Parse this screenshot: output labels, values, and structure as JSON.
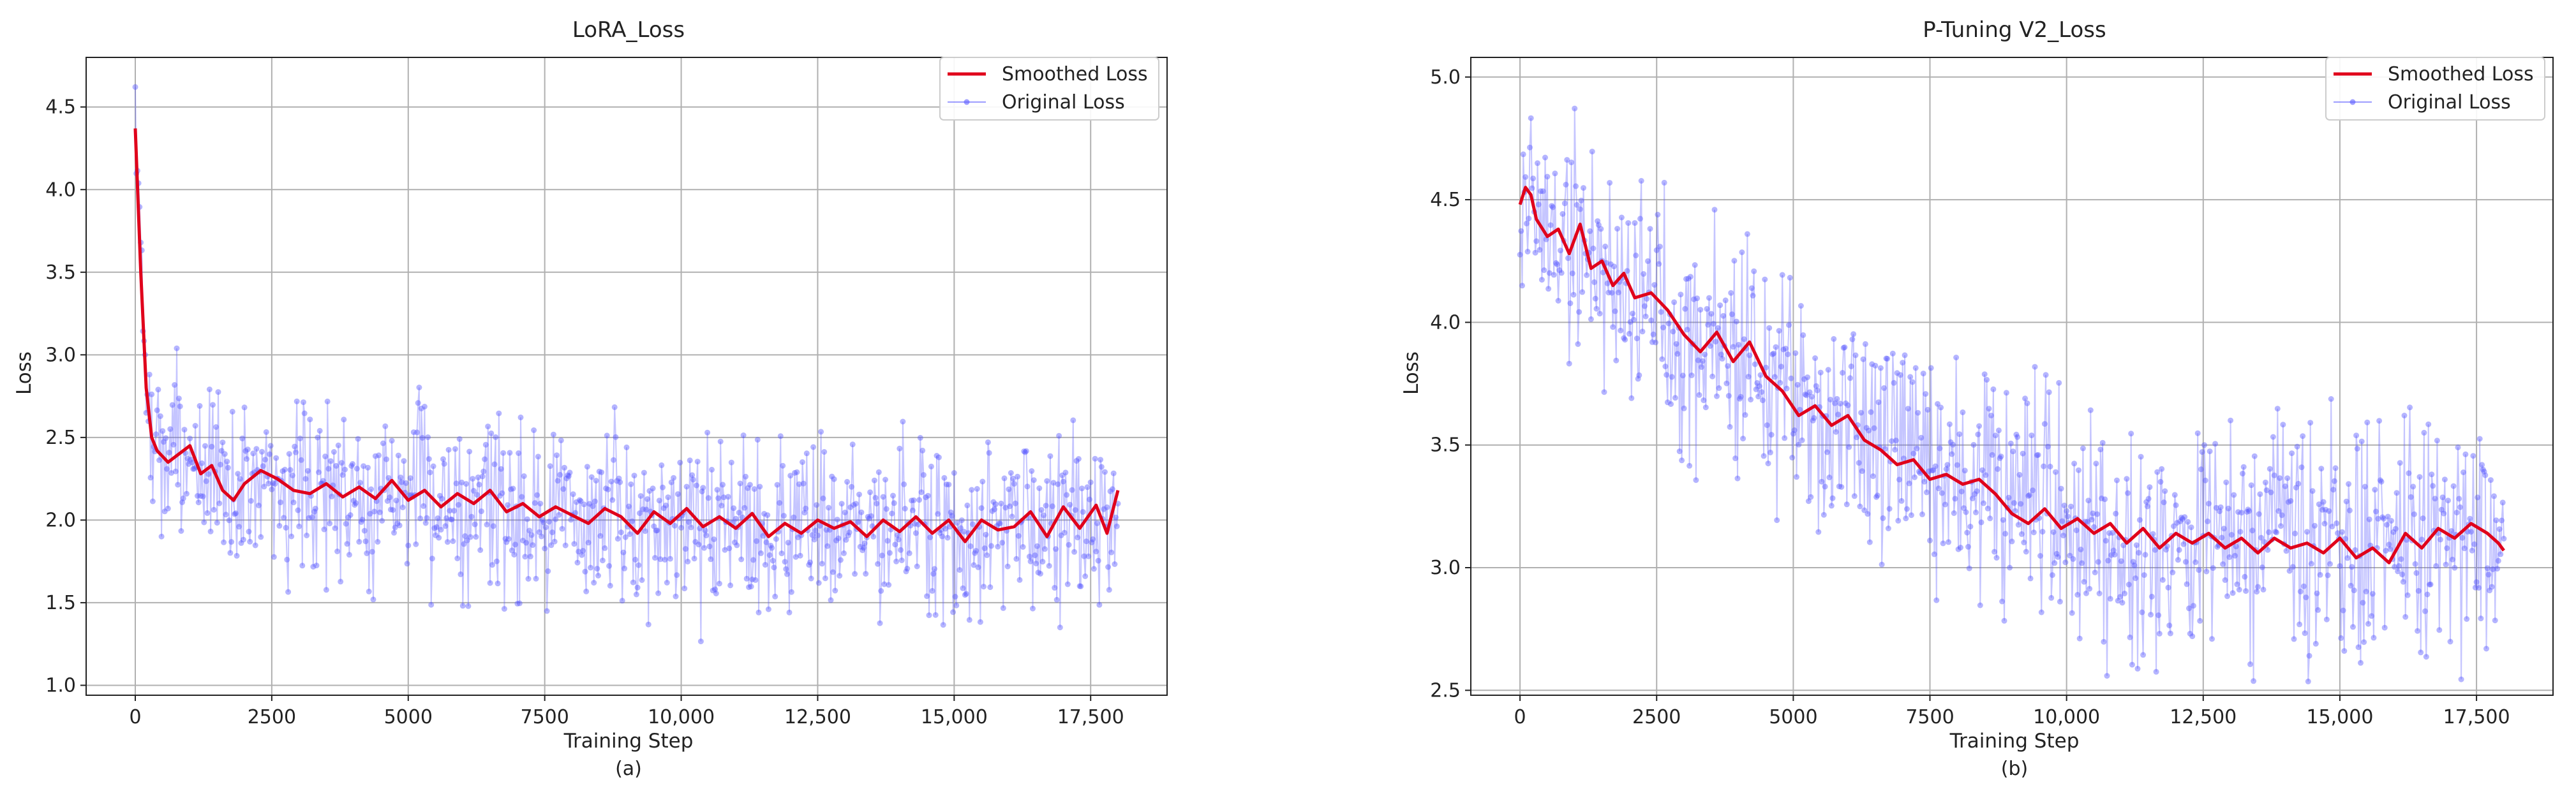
{
  "chart_data": [
    {
      "type": "line",
      "title": "LoRA_Loss",
      "xlabel": "Training Step",
      "ylabel": "Loss",
      "caption": "(a)",
      "xlim": [
        -900,
        18900
      ],
      "ylim": [
        0.94,
        4.8
      ],
      "xticks": [
        0,
        2500,
        5000,
        7500,
        10000,
        12500,
        15000,
        17500
      ],
      "xtick_labels": [
        "0",
        "2500",
        "5000",
        "7500",
        "10,000",
        "12,500",
        "15,000",
        "17,500"
      ],
      "yticks": [
        1.0,
        1.5,
        2.0,
        2.5,
        3.0,
        3.5,
        4.0,
        4.5
      ],
      "ytick_labels": [
        "1.0",
        "1.5",
        "2.0",
        "2.5",
        "3.0",
        "3.5",
        "4.0",
        "4.5"
      ],
      "grid": true,
      "legend_position": "top-right",
      "legend": [
        "Smoothed Loss",
        "Original Loss"
      ],
      "x_max_step": 18000,
      "series": [
        {
          "name": "Smoothed Loss",
          "color": "#e0001b",
          "x": [
            0,
            100,
            200,
            300,
            400,
            600,
            800,
            1000,
            1200,
            1400,
            1600,
            1800,
            2000,
            2300,
            2600,
            2900,
            3200,
            3500,
            3800,
            4100,
            4400,
            4700,
            5000,
            5300,
            5600,
            5900,
            6200,
            6500,
            6800,
            7100,
            7400,
            7700,
            8000,
            8300,
            8600,
            8900,
            9200,
            9500,
            9800,
            10100,
            10400,
            10700,
            11000,
            11300,
            11600,
            11900,
            12200,
            12500,
            12800,
            13100,
            13400,
            13700,
            14000,
            14300,
            14600,
            14900,
            15200,
            15500,
            15800,
            16100,
            16400,
            16700,
            17000,
            17300,
            17600,
            17800,
            17900,
            18000
          ],
          "values": [
            4.37,
            3.5,
            2.8,
            2.5,
            2.42,
            2.35,
            2.4,
            2.45,
            2.28,
            2.33,
            2.18,
            2.12,
            2.22,
            2.3,
            2.25,
            2.18,
            2.16,
            2.22,
            2.14,
            2.2,
            2.13,
            2.24,
            2.12,
            2.18,
            2.08,
            2.16,
            2.1,
            2.18,
            2.05,
            2.1,
            2.02,
            2.08,
            2.03,
            1.98,
            2.07,
            2.02,
            1.92,
            2.05,
            1.98,
            2.07,
            1.96,
            2.02,
            1.95,
            2.04,
            1.9,
            1.98,
            1.92,
            2.0,
            1.95,
            1.99,
            1.9,
            2.0,
            1.93,
            2.02,
            1.92,
            2.0,
            1.87,
            2.0,
            1.94,
            1.96,
            2.05,
            1.9,
            2.08,
            1.95,
            2.09,
            1.92,
            2.05,
            2.18
          ]
        },
        {
          "name": "Original Loss",
          "color": "#5a5aff",
          "points": "scattered noisy per-step values around the smoothed curve"
        }
      ]
    },
    {
      "type": "line",
      "title": "P-Tuning V2_Loss",
      "xlabel": "Training Step",
      "ylabel": "Loss",
      "caption": "(b)",
      "xlim": [
        -900,
        18900
      ],
      "ylim": [
        2.48,
        5.08
      ],
      "xticks": [
        0,
        2500,
        5000,
        7500,
        10000,
        12500,
        15000,
        17500
      ],
      "xtick_labels": [
        "0",
        "2500",
        "5000",
        "7500",
        "10,000",
        "12,500",
        "15,000",
        "17,500"
      ],
      "yticks": [
        2.5,
        3.0,
        3.5,
        4.0,
        4.5,
        5.0
      ],
      "ytick_labels": [
        "2.5",
        "3.0",
        "3.5",
        "4.0",
        "4.5",
        "5.0"
      ],
      "grid": true,
      "legend_position": "top-right",
      "legend": [
        "Smoothed Loss",
        "Original Loss"
      ],
      "x_max_step": 18000,
      "series": [
        {
          "name": "Smoothed Loss",
          "color": "#e0001b",
          "x": [
            0,
            100,
            200,
            300,
            500,
            700,
            900,
            1100,
            1300,
            1500,
            1700,
            1900,
            2100,
            2400,
            2700,
            3000,
            3300,
            3600,
            3900,
            4200,
            4500,
            4800,
            5100,
            5400,
            5700,
            6000,
            6300,
            6600,
            6900,
            7200,
            7500,
            7800,
            8100,
            8400,
            8700,
            9000,
            9300,
            9600,
            9900,
            10200,
            10500,
            10800,
            11100,
            11400,
            11700,
            12000,
            12300,
            12600,
            12900,
            13200,
            13500,
            13800,
            14100,
            14400,
            14700,
            15000,
            15300,
            15600,
            15900,
            16200,
            16500,
            16800,
            17100,
            17400,
            17700,
            17900,
            18000
          ],
          "values": [
            4.48,
            4.55,
            4.52,
            4.42,
            4.35,
            4.38,
            4.28,
            4.4,
            4.22,
            4.25,
            4.15,
            4.2,
            4.1,
            4.12,
            4.05,
            3.95,
            3.88,
            3.96,
            3.84,
            3.92,
            3.78,
            3.72,
            3.62,
            3.66,
            3.58,
            3.62,
            3.52,
            3.48,
            3.42,
            3.44,
            3.36,
            3.38,
            3.34,
            3.36,
            3.3,
            3.22,
            3.18,
            3.24,
            3.16,
            3.2,
            3.14,
            3.18,
            3.1,
            3.16,
            3.08,
            3.14,
            3.1,
            3.14,
            3.08,
            3.12,
            3.06,
            3.12,
            3.08,
            3.1,
            3.06,
            3.12,
            3.04,
            3.08,
            3.02,
            3.14,
            3.08,
            3.16,
            3.12,
            3.18,
            3.14,
            3.1,
            3.07
          ]
        },
        {
          "name": "Original Loss",
          "color": "#5a5aff",
          "points": "scattered noisy per-step values around the smoothed curve"
        }
      ]
    }
  ]
}
